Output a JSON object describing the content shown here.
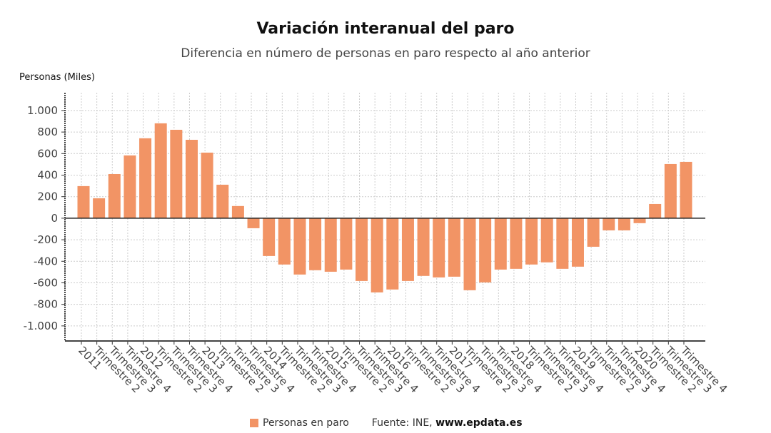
{
  "chart_data": {
    "type": "bar",
    "title": "Variación interanual del paro",
    "subtitle": "Diferencia en número de personas en paro respecto al año anterior",
    "ylabel": "Personas (Miles)",
    "xlabel": "",
    "ylim": [
      -1140,
      1165
    ],
    "yticks": [
      1000,
      800,
      600,
      400,
      200,
      0,
      -200,
      -400,
      -600,
      -800,
      -1000
    ],
    "ytick_labels": [
      "1.000",
      "800",
      "600",
      "400",
      "200",
      "0",
      "-200",
      "-400",
      "-600",
      "-800",
      "-1.000"
    ],
    "grid": true,
    "legend_position": "bottom",
    "color": "#F29465",
    "categories": [
      "2011",
      "Trimestre 2",
      "Trimestre 3",
      "Trimestre 4",
      "2012",
      "Trimestre 2",
      "Trimestre 3",
      "Trimestre 4",
      "2013",
      "Trimestre 2",
      "Trimestre 3",
      "Trimestre 4",
      "2014",
      "Trimestre 2",
      "Trimestre 3",
      "Trimestre 4",
      "2015",
      "Trimestre 2",
      "Trimestre 3",
      "Trimestre 4",
      "2016",
      "Trimestre 2",
      "Trimestre 3",
      "Trimestre 4",
      "2017",
      "Trimestre 2",
      "Trimestre 3",
      "Trimestre 4",
      "2018",
      "Trimestre 2",
      "Trimestre 3",
      "Trimestre 4",
      "2019",
      "Trimestre 2",
      "Trimestre 3",
      "Trimestre 4",
      "2020",
      "Trimestre 2",
      "Trimestre 3",
      "Trimestre 4"
    ],
    "series": [
      {
        "name": "Personas en paro",
        "values": [
          298,
          185,
          410,
          583,
          742,
          881,
          821,
          728,
          609,
          311,
          113,
          -93,
          -351,
          -430,
          -523,
          -483,
          -497,
          -477,
          -583,
          -689,
          -662,
          -583,
          -536,
          -550,
          -543,
          -669,
          -596,
          -477,
          -470,
          -430,
          -410,
          -470,
          -450,
          -265,
          -113,
          -113,
          -46,
          132,
          503,
          523
        ]
      }
    ]
  },
  "source_prefix": "Fuente: INE, ",
  "source_site": "www.epdata.es"
}
